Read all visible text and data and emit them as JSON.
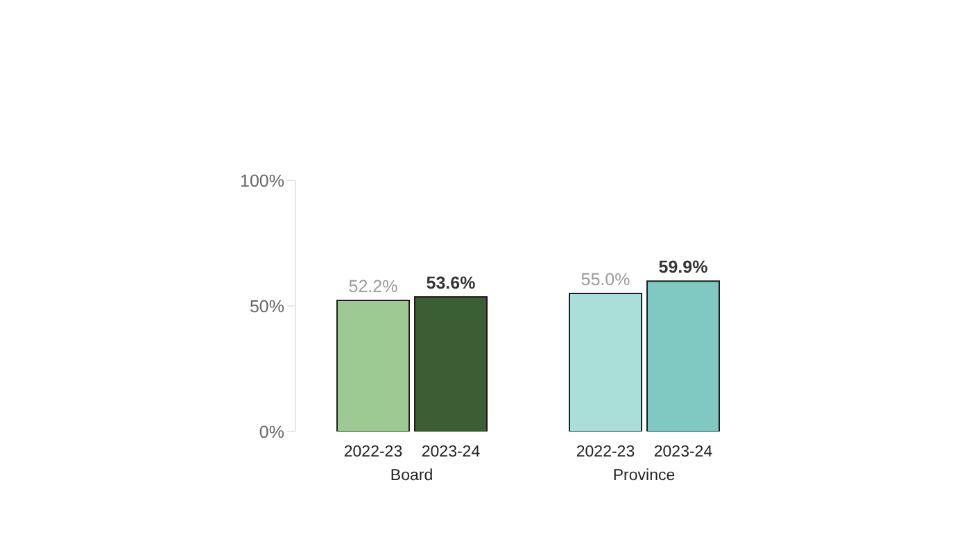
{
  "chart_data": {
    "type": "bar",
    "categories": [
      "Board",
      "Province"
    ],
    "series": [
      {
        "name": "2022-23",
        "colors": [
          "#9dc993",
          "#a9ded9"
        ],
        "values": [
          52.2,
          55.0
        ],
        "value_labels": [
          "52.2%",
          "55.0%"
        ]
      },
      {
        "name": "2023-24",
        "colors": [
          "#3b5e34",
          "#7fc9c2"
        ],
        "values": [
          53.6,
          59.9
        ],
        "value_labels": [
          "53.6%",
          "59.9%"
        ]
      }
    ],
    "ylim": [
      0,
      100
    ],
    "yticks": [
      {
        "value": 0,
        "label": "0%"
      },
      {
        "value": 50,
        "label": "50%"
      },
      {
        "value": 100,
        "label": "100%"
      }
    ]
  }
}
